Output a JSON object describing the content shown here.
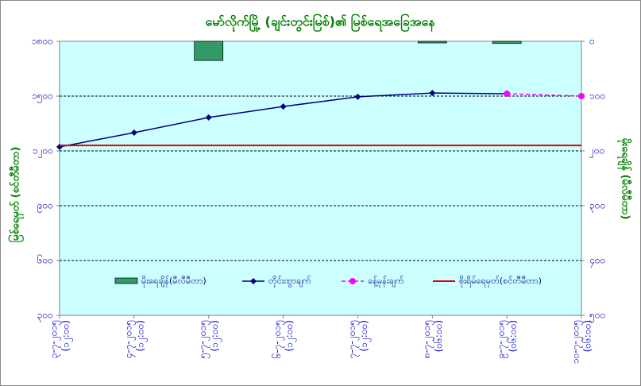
{
  "chart_data": {
    "type": "combo",
    "title": "မော်လိုက်မြို့ (ချင်းတွင်းမြစ်)၏ မြစ်ရေအခြေအနေ",
    "y_label": "မြစ်ရေမှတ် (စင်တီမီတာ)",
    "y2_label": "မိုးရေချိန် (မီလီမီတာ)",
    "categories": [
      [
        "၃-၇-၂၀၁၅",
        "(၁၂:၀၀)"
      ],
      [
        "၄-၇-၂၀၁၅",
        "(၁၂:၀၀)"
      ],
      [
        "၅-၇-၂၀၁၅",
        "(၁၂:၀၀)"
      ],
      [
        "၆-၇-၂၀၁၅",
        "(၁၂:၀၀)"
      ],
      [
        "၇-၇-၂၀၁၅",
        "(၁၂:၀၀)"
      ],
      [
        "၈-၇-၂၀၁၅",
        "(၀၆:၀၀)"
      ],
      [
        "၉-၇-၂၀၁၅",
        "(၀၆:၀၀)"
      ],
      [
        "၁၀-၇-၂၀၁၅",
        "(၀၆:၀၀)"
      ]
    ],
    "ylim": [
      300,
      1800
    ],
    "yticks": [
      {
        "value": 300,
        "label": "၃၀၀"
      },
      {
        "value": 600,
        "label": "၆၀၀"
      },
      {
        "value": 900,
        "label": "၉၀၀"
      },
      {
        "value": 1200,
        "label": "၁၂၀၀"
      },
      {
        "value": 1500,
        "label": "၁၅၀၀"
      },
      {
        "value": 1800,
        "label": "၁၈၀၀"
      }
    ],
    "y2lim": [
      500,
      0
    ],
    "y2ticks": [
      {
        "value": 0,
        "label": "၀"
      },
      {
        "value": 100,
        "label": "၁၀၀"
      },
      {
        "value": 200,
        "label": "၂၀၀"
      },
      {
        "value": 300,
        "label": "၃၀၀"
      },
      {
        "value": 400,
        "label": "၄၀၀"
      },
      {
        "value": 500,
        "label": "၅၀၀"
      }
    ],
    "grid": true,
    "series": [
      {
        "name": "မိုးရေချိန်(မီလီမီတာ)",
        "type": "bar",
        "axis": "y2",
        "color": "#339966",
        "values": [
          0,
          0,
          35,
          0,
          0,
          3,
          4,
          0
        ]
      },
      {
        "name": "တိုင်းထွာချက်",
        "type": "line",
        "color": "#000080",
        "marker": "diamond",
        "values": [
          1222,
          1300,
          1383,
          1443,
          1496,
          1517,
          1513,
          null
        ]
      },
      {
        "name": "ခန့်မှန်းချက်",
        "type": "line",
        "color": "#ff00ff",
        "marker": "circle",
        "dashed": true,
        "values": [
          null,
          null,
          null,
          null,
          null,
          null,
          1513,
          1500
        ]
      },
      {
        "name": "စိုးရိမ်ရေမှတ်(စင်တီမီတာ)",
        "type": "level",
        "color": "#dd0000",
        "values": [
          1230,
          1230,
          1230,
          1230,
          1230,
          1230,
          1230,
          1230
        ]
      }
    ]
  }
}
